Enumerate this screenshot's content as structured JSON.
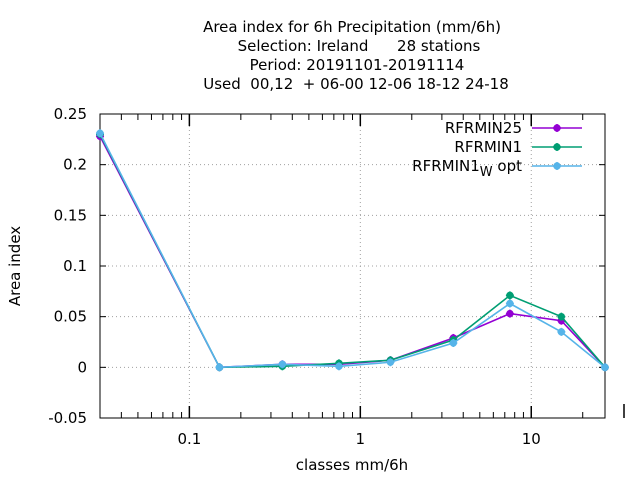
{
  "chart_data": {
    "type": "line",
    "title_lines": [
      "Area index  for 6h Precipitation (mm/6h)",
      "Selection: Ireland      28 stations",
      "Period: 20191101-20191114",
      "Used  00,12  + 06-00 12-06 18-12 24-18"
    ],
    "xlabel": "classes mm/6h",
    "ylabel": "Area index",
    "x_scale": "log",
    "xlim": [
      0.03,
      27
    ],
    "ylim": [
      -0.05,
      0.25
    ],
    "x_ticks": [
      {
        "value": 0.1,
        "label": "0.1"
      },
      {
        "value": 1,
        "label": "1"
      },
      {
        "value": 10,
        "label": "10"
      }
    ],
    "y_ticks": [
      {
        "value": -0.05,
        "label": "-0.05"
      },
      {
        "value": 0,
        "label": "0"
      },
      {
        "value": 0.05,
        "label": "0.05"
      },
      {
        "value": 0.1,
        "label": "0.1"
      },
      {
        "value": 0.15,
        "label": "0.15"
      },
      {
        "value": 0.2,
        "label": "0.2"
      },
      {
        "value": 0.25,
        "label": "0.25"
      }
    ],
    "grid": true,
    "legend_position": "top-right",
    "x": [
      0.03,
      0.15,
      0.35,
      0.75,
      1.5,
      3.5,
      7.5,
      15,
      27
    ],
    "series": [
      {
        "name": "RFRMIN25",
        "color": "#9400d3",
        "marker": "cross-dot",
        "values": [
          0.228,
          0.0,
          0.003,
          0.003,
          0.007,
          0.029,
          0.053,
          0.046,
          0.0
        ]
      },
      {
        "name": "RFRMIN1",
        "color": "#009e73",
        "marker": "cross-dot",
        "values": [
          0.23,
          0.0,
          0.001,
          0.004,
          0.007,
          0.027,
          0.071,
          0.05,
          0.0
        ]
      },
      {
        "name": "RFRMIN1",
        "name_subscript": "W",
        "name_suffix": "opt",
        "color": "#56b4e9",
        "marker": "cross-dot",
        "values": [
          0.231,
          0.0,
          0.003,
          0.001,
          0.005,
          0.024,
          0.063,
          0.035,
          0.0
        ]
      }
    ]
  }
}
